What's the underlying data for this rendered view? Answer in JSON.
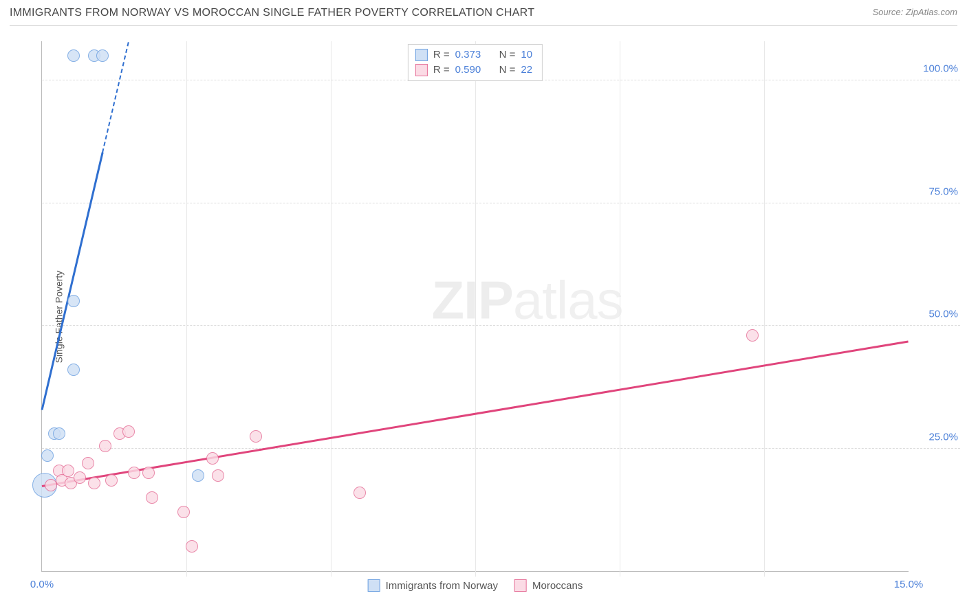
{
  "header": {
    "title": "IMMIGRANTS FROM NORWAY VS MOROCCAN SINGLE FATHER POVERTY CORRELATION CHART",
    "source": "Source: ZipAtlas.com"
  },
  "chart": {
    "type": "scatter",
    "y_axis_label": "Single Father Poverty",
    "background_color": "#ffffff",
    "grid_color": "#dcdcdc",
    "axis_color": "#bbbbbb",
    "tick_label_color": "#4a7fd8",
    "xlim": [
      0.0,
      15.0
    ],
    "ylim": [
      0.0,
      108.0
    ],
    "x_ticks": [
      {
        "v": 0.0,
        "label": "0.0%"
      },
      {
        "v": 15.0,
        "label": "15.0%"
      }
    ],
    "x_minor_ticks": [
      2.5,
      5.0,
      7.5,
      10.0,
      12.5
    ],
    "y_ticks": [
      {
        "v": 25.0,
        "label": "25.0%"
      },
      {
        "v": 50.0,
        "label": "50.0%"
      },
      {
        "v": 75.0,
        "label": "75.0%"
      },
      {
        "v": 100.0,
        "label": "100.0%"
      }
    ],
    "watermark": {
      "bold": "ZIP",
      "light": "atlas"
    },
    "series": [
      {
        "id": "norway",
        "label": "Immigrants from Norway",
        "marker_fill": "#cfe0f5",
        "marker_stroke": "#6b9fe0",
        "marker_radius": 9,
        "trend_color": "#2f6fd0",
        "trend": {
          "x1": 0.0,
          "y1": 33.0,
          "x2": 1.5,
          "y2": 108.0,
          "dash_from_x": 1.05
        },
        "R": "0.373",
        "N": "10",
        "points": [
          {
            "x": 0.05,
            "y": 17.5,
            "r": 18
          },
          {
            "x": 0.1,
            "y": 23.5
          },
          {
            "x": 0.22,
            "y": 28.0
          },
          {
            "x": 0.3,
            "y": 28.0
          },
          {
            "x": 0.55,
            "y": 41.0
          },
          {
            "x": 0.55,
            "y": 55.0
          },
          {
            "x": 0.55,
            "y": 105.0
          },
          {
            "x": 0.9,
            "y": 105.0
          },
          {
            "x": 1.05,
            "y": 105.0
          },
          {
            "x": 2.7,
            "y": 19.5
          }
        ]
      },
      {
        "id": "moroccans",
        "label": "Moroccans",
        "marker_fill": "#fbdbe5",
        "marker_stroke": "#e56f97",
        "marker_radius": 9,
        "trend_color": "#e0457c",
        "trend": {
          "x1": 0.0,
          "y1": 17.5,
          "x2": 15.0,
          "y2": 47.0
        },
        "R": "0.590",
        "N": "22",
        "points": [
          {
            "x": 0.15,
            "y": 17.5
          },
          {
            "x": 0.3,
            "y": 20.5
          },
          {
            "x": 0.35,
            "y": 18.5
          },
          {
            "x": 0.45,
            "y": 20.5
          },
          {
            "x": 0.5,
            "y": 18.0
          },
          {
            "x": 0.65,
            "y": 19.0
          },
          {
            "x": 0.8,
            "y": 22.0
          },
          {
            "x": 0.9,
            "y": 18.0
          },
          {
            "x": 1.1,
            "y": 25.5
          },
          {
            "x": 1.2,
            "y": 18.5
          },
          {
            "x": 1.35,
            "y": 28.0
          },
          {
            "x": 1.5,
            "y": 28.5
          },
          {
            "x": 1.6,
            "y": 20.0
          },
          {
            "x": 1.85,
            "y": 20.0
          },
          {
            "x": 1.9,
            "y": 15.0
          },
          {
            "x": 2.45,
            "y": 12.0
          },
          {
            "x": 2.6,
            "y": 5.0
          },
          {
            "x": 2.95,
            "y": 23.0
          },
          {
            "x": 3.05,
            "y": 19.5
          },
          {
            "x": 3.7,
            "y": 27.5
          },
          {
            "x": 5.5,
            "y": 16.0
          },
          {
            "x": 12.3,
            "y": 48.0
          }
        ]
      }
    ]
  }
}
